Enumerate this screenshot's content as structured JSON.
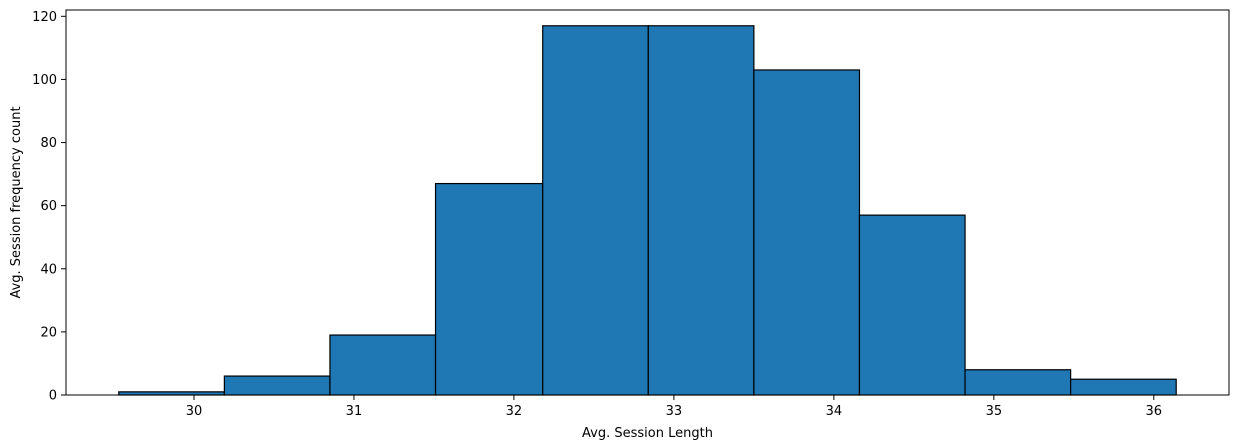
{
  "chart_data": {
    "type": "bar",
    "subtype": "histogram",
    "title": "",
    "xlabel": "Avg. Session Length",
    "ylabel": "Avg. Session frequency count",
    "bin_edges": [
      29.53,
      30.19,
      30.85,
      31.51,
      32.18,
      32.84,
      33.5,
      34.16,
      34.82,
      35.48,
      36.14
    ],
    "counts": [
      1,
      6,
      19,
      67,
      117,
      117,
      103,
      57,
      8,
      5
    ],
    "xlim": [
      29.2,
      36.47
    ],
    "ylim": [
      0,
      122
    ],
    "xticks": [
      30,
      31,
      32,
      33,
      34,
      35,
      36
    ],
    "xtick_labels": [
      "30",
      "31",
      "32",
      "33",
      "34",
      "35",
      "36"
    ],
    "yticks": [
      0,
      20,
      40,
      60,
      80,
      100,
      120
    ],
    "ytick_labels": [
      "0",
      "20",
      "40",
      "60",
      "80",
      "100",
      "120"
    ],
    "bar_color": "#1f77b4",
    "edge_color": "#000000",
    "grid": false,
    "legend": "none"
  }
}
